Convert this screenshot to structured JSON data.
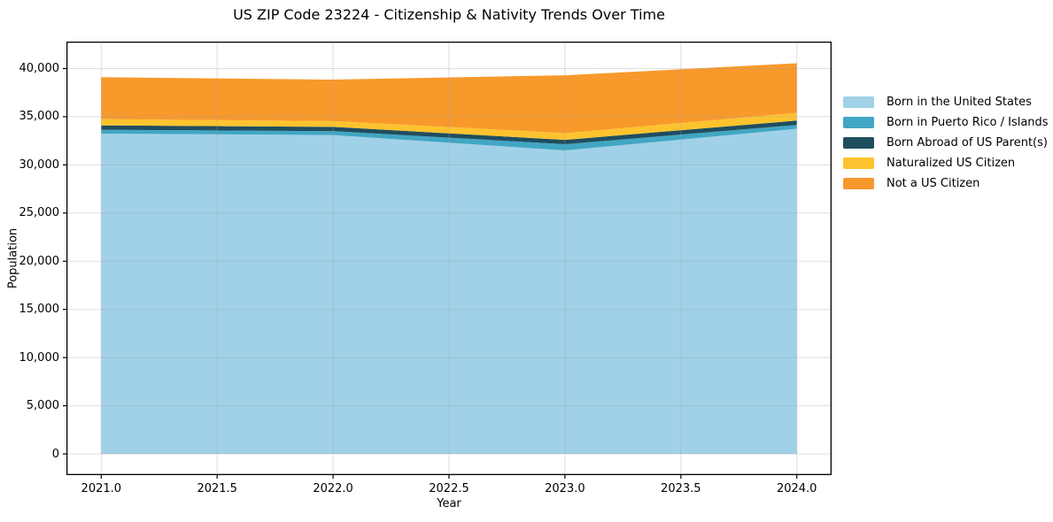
{
  "title": "US ZIP Code 23224 - Citizenship & Nativity Trends Over Time",
  "chart_data": {
    "type": "area",
    "stacked": true,
    "title": "US ZIP Code 23224 - Citizenship & Nativity Trends Over Time",
    "xlabel": "Year",
    "ylabel": "Population",
    "x": [
      2021,
      2022,
      2023,
      2024
    ],
    "series": [
      {
        "name": "Born in the United States",
        "color": "#a1d1e8",
        "values": [
          33250,
          33100,
          31500,
          33750
        ]
      },
      {
        "name": "Born in Puerto Rico / Islands",
        "color": "#41a6c3",
        "values": [
          400,
          400,
          650,
          400
        ]
      },
      {
        "name": "Born Abroad of US Parent(s)",
        "color": "#1f4e5f",
        "values": [
          450,
          450,
          450,
          450
        ]
      },
      {
        "name": "Naturalized US Citizen",
        "color": "#fdc32f",
        "values": [
          650,
          600,
          700,
          800
        ]
      },
      {
        "name": "Not a US Citizen",
        "color": "#f8992b",
        "values": [
          4350,
          4300,
          6000,
          5150
        ]
      }
    ],
    "totals": [
      39100,
      38850,
      39300,
      40550
    ],
    "xticks": [
      2021.0,
      2021.5,
      2022.0,
      2022.5,
      2023.0,
      2023.5,
      2024.0
    ],
    "xtick_labels": [
      "2021.0",
      "2021.5",
      "2022.0",
      "2022.5",
      "2023.0",
      "2023.5",
      "2024.0"
    ],
    "yticks": [
      0,
      5000,
      10000,
      15000,
      20000,
      25000,
      30000,
      35000,
      40000
    ],
    "ytick_labels": [
      "0",
      "5,000",
      "10,000",
      "15,000",
      "20,000",
      "25,000",
      "30,000",
      "35,000",
      "40,000"
    ],
    "xlim": [
      2020.85,
      2024.15
    ],
    "ylim": [
      -2200,
      42800
    ],
    "grid": true,
    "legend_position": "right-outside",
    "colors": {
      "spine": "#000000",
      "grid": "rgba(160,160,160,0.35)",
      "text": "#000000",
      "background": "#ffffff"
    }
  }
}
